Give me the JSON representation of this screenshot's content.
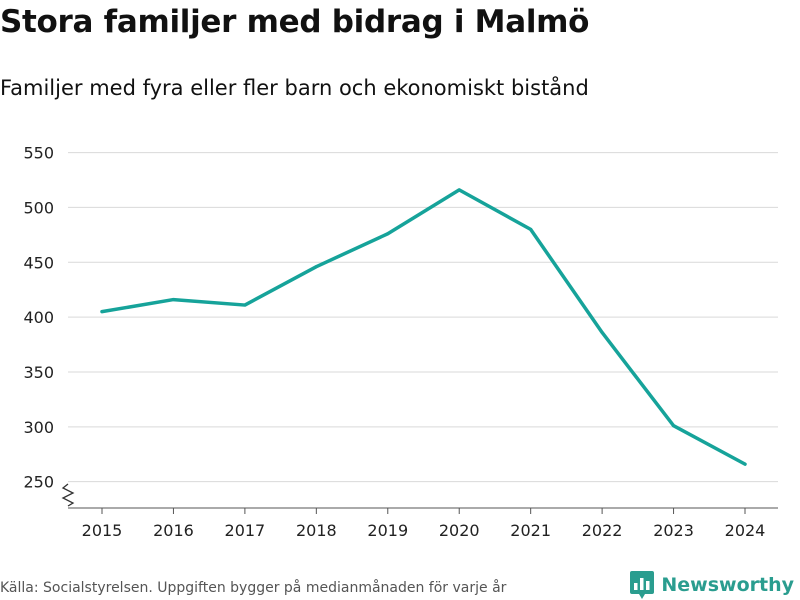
{
  "header": {
    "title": "Stora familjer med bidrag i Malmö",
    "subtitle": "Familjer med fyra eller fler barn och ekonomiskt bistånd"
  },
  "footer": {
    "source": "Källa: Socialstyrelsen. Uppgiften bygger på medianmånaden för varje år",
    "brand": "Newsworthy",
    "brand_icon": "newsworthy-logo-icon"
  },
  "colors": {
    "line": "#16a39a",
    "brand": "#2a9d8f",
    "grid": "#d9d9d9",
    "axis": "#555555"
  },
  "chart_data": {
    "type": "line",
    "title": "Stora familjer med bidrag i Malmö",
    "subtitle": "Familjer med fyra eller fler barn och ekonomiskt bistånd",
    "xlabel": "",
    "ylabel": "",
    "categories": [
      "2015",
      "2016",
      "2017",
      "2018",
      "2019",
      "2020",
      "2021",
      "2022",
      "2023",
      "2024"
    ],
    "series": [
      {
        "name": "Familjer med fyra eller fler barn och ekonomiskt bistånd",
        "values": [
          405,
          416,
          411,
          446,
          476,
          516,
          480,
          386,
          301,
          266
        ]
      }
    ],
    "yticks": [
      250,
      300,
      350,
      400,
      450,
      500,
      550
    ],
    "ylim": [
      226,
      556
    ],
    "y_axis_break": true,
    "grid": true
  }
}
